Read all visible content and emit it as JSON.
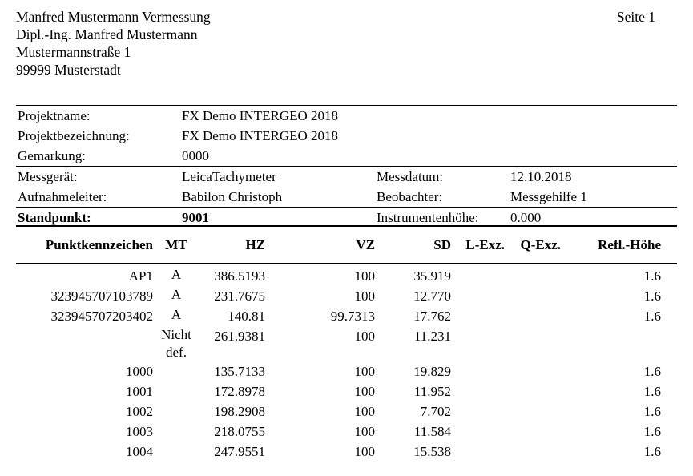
{
  "page": {
    "page_label": "Seite 1"
  },
  "letterhead": {
    "line1": "Manfred Mustermann Vermessung",
    "line2": "Dipl.-Ing. Manfred Mustermann",
    "line3": "Mustermannstraße 1",
    "line4": "99999 Musterstadt"
  },
  "project_info": {
    "projektname_label": "Projektname:",
    "projektname_value": "FX Demo INTERGEO 2018",
    "projektbezeichnung_label": "Projektbezeichnung:",
    "projektbezeichnung_value": "FX Demo INTERGEO 2018",
    "gemarkung_label": "Gemarkung:",
    "gemarkung_value": "0000"
  },
  "session_info": {
    "messgeraet_label": "Messgerät:",
    "messgeraet_value": "LeicaTachymeter",
    "messdatum_label": "Messdatum:",
    "messdatum_value": "12.10.2018",
    "aufnahmeleiter_label": "Aufnahmeleiter:",
    "aufnahmeleiter_value": "Babilon Christoph",
    "beobachter_label": "Beobachter:",
    "beobachter_value": "Messgehilfe 1"
  },
  "station": {
    "standpunkt_label": "Standpunkt:",
    "standpunkt_value": "9001",
    "instrumentenhoehe_label": "Instrumentenhöhe:",
    "instrumentenhoehe_value": "0.000"
  },
  "measurements": {
    "columns": [
      "Punktkennzeichen",
      "MT",
      "HZ",
      "VZ",
      "SD",
      "L-Exz.",
      "Q-Exz.",
      "Refl.-Höhe"
    ],
    "rows": [
      [
        "AP1",
        "A",
        "386.5193",
        "100",
        "35.919",
        "",
        "",
        "1.6"
      ],
      [
        "323945707103789",
        "A",
        "231.7675",
        "100",
        "12.770",
        "",
        "",
        "1.6"
      ],
      [
        "323945707203402",
        "A",
        "140.81",
        "99.7313",
        "17.762",
        "",
        "",
        "1.6"
      ],
      [
        "",
        "Nicht def.",
        "261.9381",
        "100",
        "11.231",
        "",
        "",
        ""
      ],
      [
        "1000",
        "",
        "135.7133",
        "100",
        "19.829",
        "",
        "",
        "1.6"
      ],
      [
        "1001",
        "",
        "172.8978",
        "100",
        "11.952",
        "",
        "",
        "1.6"
      ],
      [
        "1002",
        "",
        "198.2908",
        "100",
        "7.702",
        "",
        "",
        "1.6"
      ],
      [
        "1003",
        "",
        "218.0755",
        "100",
        "11.584",
        "",
        "",
        "1.6"
      ],
      [
        "1004",
        "",
        "247.9551",
        "100",
        "15.538",
        "",
        "",
        "1.6"
      ]
    ]
  },
  "colors": {
    "text": "#000000",
    "background": "#ffffff",
    "rule": "#000000"
  }
}
